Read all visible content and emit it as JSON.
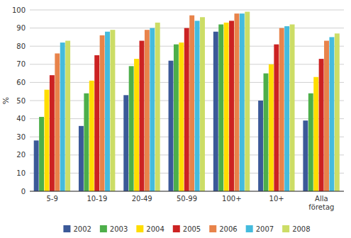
{
  "chart_data": {
    "type": "bar",
    "y_label": "%",
    "categories": [
      "5-9",
      "10-19",
      "20-49",
      "50-99",
      "100+",
      "10+",
      "Alla\nföretag"
    ],
    "series": [
      {
        "name": "2002",
        "color": "#3B5998",
        "values": [
          28,
          36,
          53,
          72,
          88,
          50,
          39
        ]
      },
      {
        "name": "2003",
        "color": "#4DAF4A",
        "values": [
          41,
          54,
          69,
          81,
          92,
          65,
          54
        ]
      },
      {
        "name": "2004",
        "color": "#FFDD00",
        "values": [
          56,
          61,
          73,
          82,
          93,
          70,
          63
        ]
      },
      {
        "name": "2005",
        "color": "#CC2222",
        "values": [
          64,
          75,
          83,
          90,
          94,
          81,
          73
        ]
      },
      {
        "name": "2006",
        "color": "#E8834A",
        "values": [
          76,
          86,
          89,
          97,
          98,
          90,
          83
        ]
      },
      {
        "name": "2007",
        "color": "#44BBDD",
        "values": [
          82,
          88,
          90,
          94,
          98,
          91,
          85
        ]
      },
      {
        "name": "2008",
        "color": "#CCDD66",
        "values": [
          83,
          89,
          93,
          96,
          99,
          92,
          87
        ]
      }
    ],
    "ylim": [
      0,
      100
    ],
    "yticks": [
      0,
      10,
      20,
      30,
      40,
      50,
      60,
      70,
      80,
      90,
      100
    ],
    "grid": true,
    "legend": "bottom"
  }
}
